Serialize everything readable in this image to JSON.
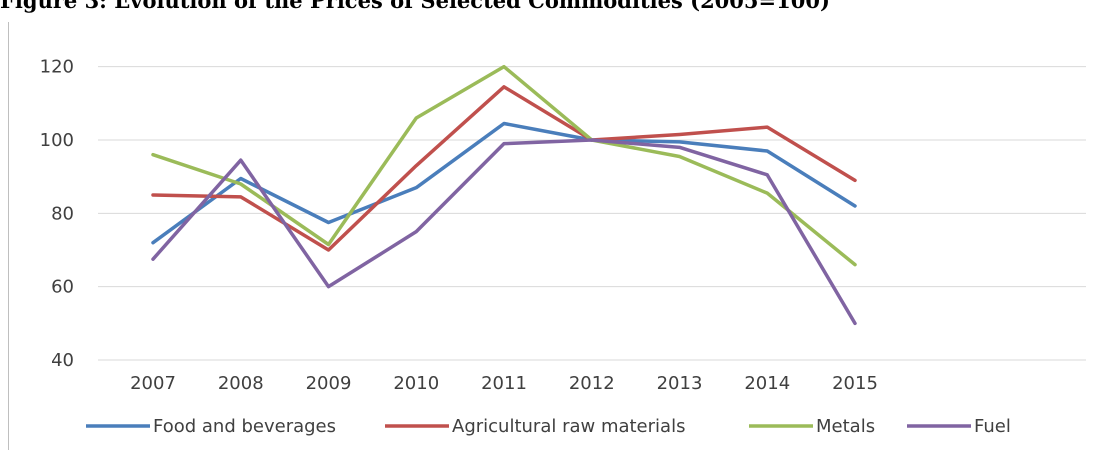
{
  "figure_title": "Figure 3: Evolution of the Prices of Selected Commodities (2005=100)",
  "chart_data": {
    "type": "line",
    "title": "",
    "xlabel": "",
    "ylabel": "",
    "x": [
      "2007",
      "2008",
      "2009",
      "2010",
      "2011",
      "2012",
      "2013",
      "2014",
      "2015"
    ],
    "ylim": [
      40,
      130
    ],
    "yticks": [
      40,
      60,
      80,
      100,
      120
    ],
    "grid": true,
    "legend": "bottom",
    "series": [
      {
        "name": "Food and beverages",
        "color": "#4a7ebb",
        "values": [
          72,
          89.5,
          77.5,
          87,
          104.5,
          100,
          99.5,
          97,
          82
        ]
      },
      {
        "name": "Agricultural raw materials",
        "color": "#c0504d",
        "values": [
          85,
          84.5,
          70,
          93,
          114.5,
          100,
          101.5,
          103.5,
          89
        ]
      },
      {
        "name": "Metals",
        "color": "#9bbb59",
        "values": [
          96,
          88,
          71.5,
          106,
          120,
          100,
          95.5,
          85.5,
          66
        ]
      },
      {
        "name": "Fuel",
        "color": "#8064a2",
        "values": [
          67.5,
          94.5,
          60,
          75,
          99,
          100,
          98,
          90.5,
          50
        ]
      }
    ]
  }
}
